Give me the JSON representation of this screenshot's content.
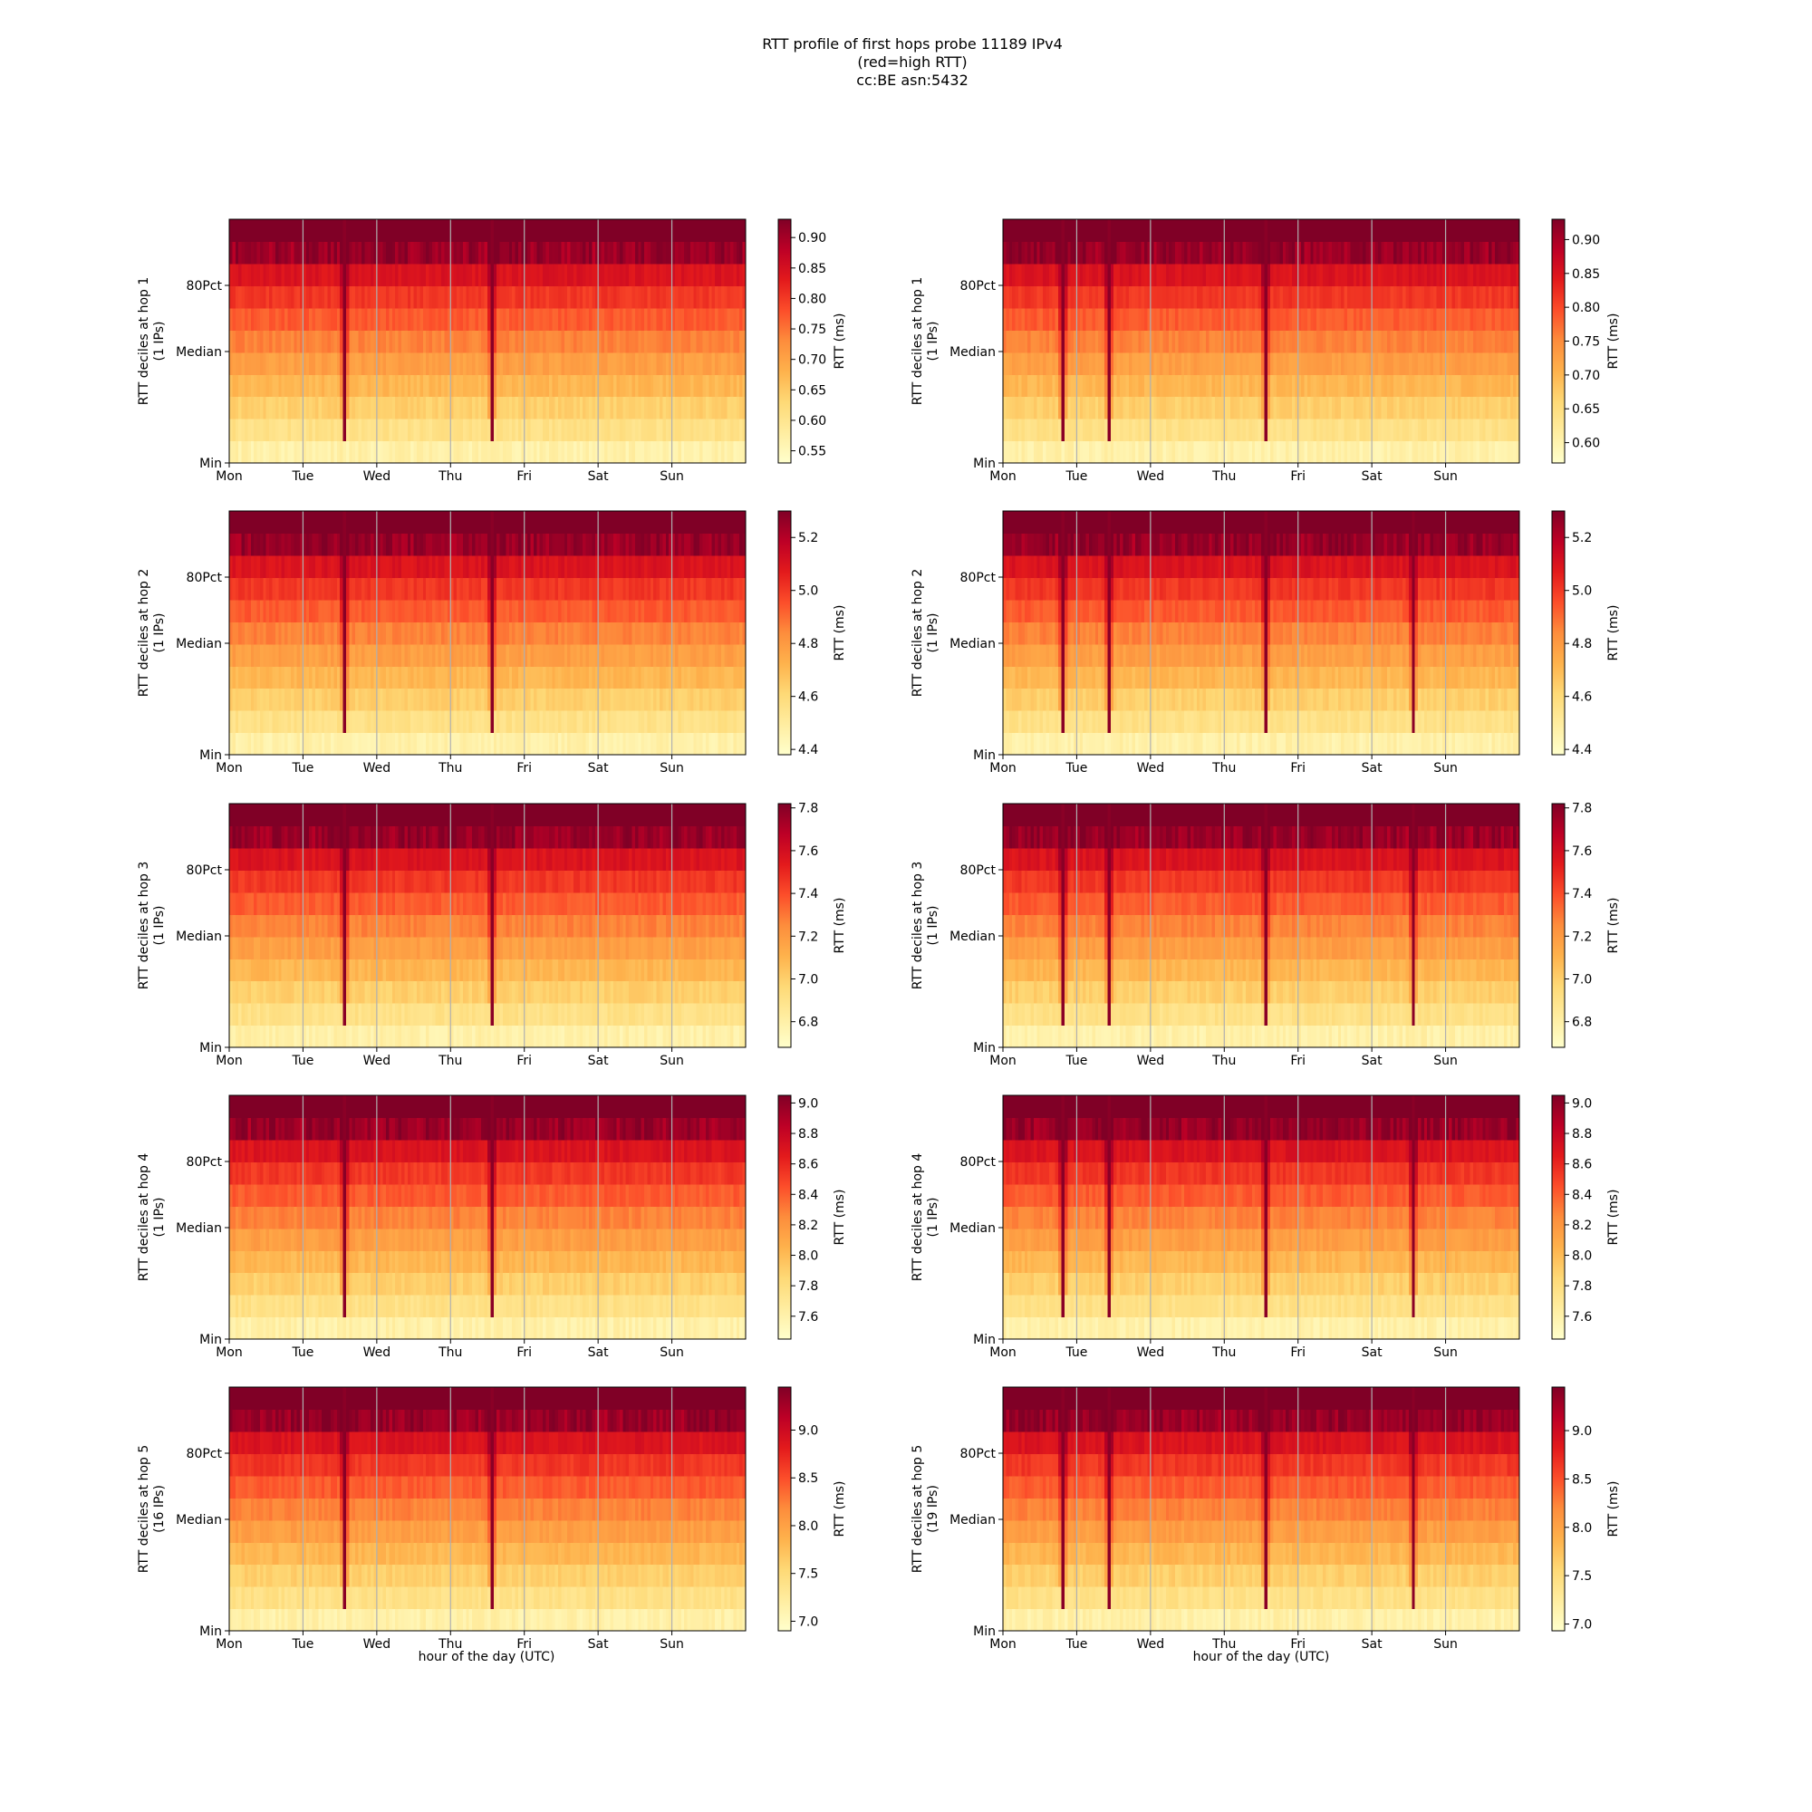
{
  "title_lines": [
    "RTT profile of first hops probe 11189 IPv4",
    "(red=high RTT)",
    "cc:BE asn:5432"
  ],
  "xlabel": "hour of the day (UTC)",
  "colorbar_label": "RTT (ms)",
  "y_ticks": [
    "80Pct",
    "Median",
    "Min"
  ],
  "x_ticks": [
    "Mon",
    "Tue",
    "Wed",
    "Thu",
    "Fri",
    "Sat",
    "Sun"
  ],
  "colormap": {
    "name": "YlOrRd",
    "stops": [
      "#ffffcc",
      "#ffeda0",
      "#fed976",
      "#feb24c",
      "#fd8d3c",
      "#fc4e2a",
      "#e31a1c",
      "#bd0026",
      "#800026"
    ]
  },
  "chart_data": [
    {
      "type": "heatmap",
      "ylabel": "RTT deciles at hop 1",
      "ylabel2": "(1 IPs)",
      "colorbar_range": [
        0.53,
        0.93
      ],
      "colorbar_ticks": [
        "0.55",
        "0.60",
        "0.65",
        "0.70",
        "0.75",
        "0.80",
        "0.85",
        "0.90"
      ],
      "spikes": [
        1.55,
        3.55
      ]
    },
    {
      "type": "heatmap",
      "ylabel": "RTT deciles at hop 1",
      "ylabel2": "(1 IPs)",
      "colorbar_range": [
        0.57,
        0.93
      ],
      "colorbar_ticks": [
        "0.60",
        "0.65",
        "0.70",
        "0.75",
        "0.80",
        "0.85",
        "0.90"
      ],
      "spikes": [
        0.8,
        1.4,
        3.55
      ]
    },
    {
      "type": "heatmap",
      "ylabel": "RTT deciles at hop 2",
      "ylabel2": "(1 IPs)",
      "colorbar_range": [
        4.38,
        5.3
      ],
      "colorbar_ticks": [
        "4.4",
        "4.6",
        "4.8",
        "5.0",
        "5.2"
      ],
      "spikes": [
        1.55,
        3.55
      ]
    },
    {
      "type": "heatmap",
      "ylabel": "RTT deciles at hop 2",
      "ylabel2": "(1 IPs)",
      "colorbar_range": [
        4.38,
        5.3
      ],
      "colorbar_ticks": [
        "4.4",
        "4.6",
        "4.8",
        "5.0",
        "5.2"
      ],
      "spikes": [
        0.8,
        1.4,
        3.55,
        5.55
      ]
    },
    {
      "type": "heatmap",
      "ylabel": "RTT deciles at hop 3",
      "ylabel2": "(1 IPs)",
      "colorbar_range": [
        6.68,
        7.82
      ],
      "colorbar_ticks": [
        "6.8",
        "7.0",
        "7.2",
        "7.4",
        "7.6",
        "7.8"
      ],
      "spikes": [
        1.55,
        3.55
      ]
    },
    {
      "type": "heatmap",
      "ylabel": "RTT deciles at hop 3",
      "ylabel2": "(1 IPs)",
      "colorbar_range": [
        6.68,
        7.82
      ],
      "colorbar_ticks": [
        "6.8",
        "7.0",
        "7.2",
        "7.4",
        "7.6",
        "7.8"
      ],
      "spikes": [
        0.8,
        1.4,
        3.55,
        5.55
      ]
    },
    {
      "type": "heatmap",
      "ylabel": "RTT deciles at hop 4",
      "ylabel2": "(1 IPs)",
      "colorbar_range": [
        7.45,
        9.05
      ],
      "colorbar_ticks": [
        "7.6",
        "7.8",
        "8.0",
        "8.2",
        "8.4",
        "8.6",
        "8.8",
        "9.0"
      ],
      "spikes": [
        1.55,
        3.55
      ]
    },
    {
      "type": "heatmap",
      "ylabel": "RTT deciles at hop 4",
      "ylabel2": "(1 IPs)",
      "colorbar_range": [
        7.45,
        9.05
      ],
      "colorbar_ticks": [
        "7.6",
        "7.8",
        "8.0",
        "8.2",
        "8.4",
        "8.6",
        "8.8",
        "9.0"
      ],
      "spikes": [
        0.8,
        1.4,
        3.55,
        5.55
      ]
    },
    {
      "type": "heatmap",
      "ylabel": "RTT deciles at hop 5",
      "ylabel2": "(16 IPs)",
      "colorbar_range": [
        6.9,
        9.45
      ],
      "colorbar_ticks": [
        "7.0",
        "7.5",
        "8.0",
        "8.5",
        "9.0"
      ],
      "spikes": [
        1.55,
        3.55
      ]
    },
    {
      "type": "heatmap",
      "ylabel": "RTT deciles at hop 5",
      "ylabel2": "(19 IPs)",
      "colorbar_range": [
        6.93,
        9.45
      ],
      "colorbar_ticks": [
        "7.0",
        "7.5",
        "8.0",
        "8.5",
        "9.0"
      ],
      "spikes": [
        0.8,
        1.4,
        3.55,
        5.55
      ]
    }
  ]
}
